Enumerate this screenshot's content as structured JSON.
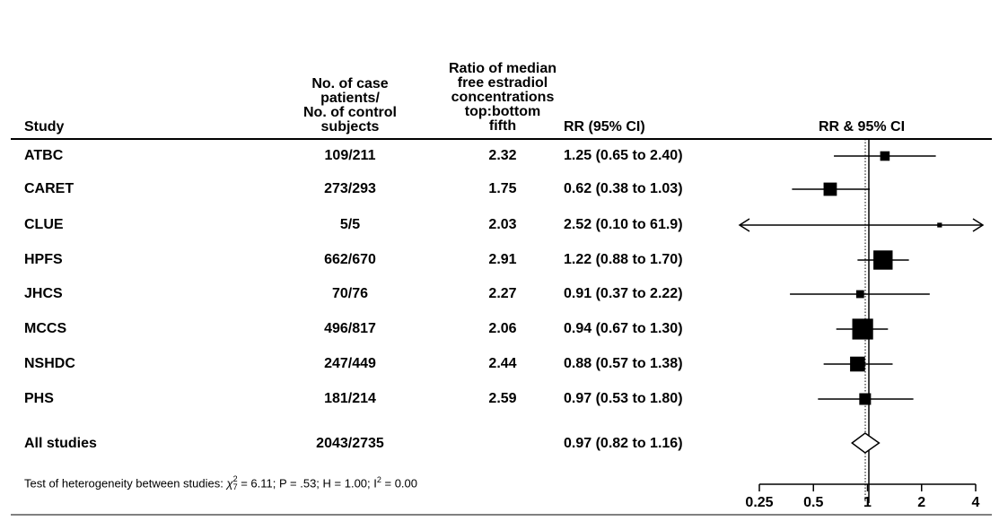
{
  "headers": {
    "study": "Study",
    "cases": "No. of case\npatients/\nNo. of control\nsubjects",
    "ratio": "Ratio of median\nfree estradiol\nconcentrations\ntop:bottom\nfifth",
    "rr": "RR (95% CI)",
    "plot": "RR & 95% CI"
  },
  "chart_data": {
    "type": "forest",
    "x_scale": "log",
    "xlim": [
      0.25,
      4
    ],
    "x_ticks": [
      "0.25",
      "0.5",
      "1",
      "2",
      "4"
    ],
    "reference_line": 1,
    "studies": [
      {
        "name": "ATBC",
        "cases": "109/211",
        "ratio": "2.32",
        "rr_text": "1.25 (0.65 to 2.40)",
        "rr": 1.25,
        "lo": 0.65,
        "hi": 2.4,
        "weight": 0.55
      },
      {
        "name": "CARET",
        "cases": "273/293",
        "ratio": "1.75",
        "rr_text": "0.62 (0.38 to 1.03)",
        "rr": 0.62,
        "lo": 0.38,
        "hi": 1.03,
        "weight": 0.9
      },
      {
        "name": "CLUE",
        "cases": "5/5",
        "ratio": "2.03",
        "rr_text": "2.52 (0.10 to 61.9)",
        "rr": 2.52,
        "lo": 0.1,
        "hi": 61.9,
        "weight": 0.1
      },
      {
        "name": "HPFS",
        "cases": "662/670",
        "ratio": "2.91",
        "rr_text": "1.22 (0.88 to 1.70)",
        "rr": 1.22,
        "lo": 0.88,
        "hi": 1.7,
        "weight": 1.45
      },
      {
        "name": "JHCS",
        "cases": "70/76",
        "ratio": "2.27",
        "rr_text": "0.91 (0.37 to 2.22)",
        "rr": 0.91,
        "lo": 0.37,
        "hi": 2.22,
        "weight": 0.4
      },
      {
        "name": "MCCS",
        "cases": "496/817",
        "ratio": "2.06",
        "rr_text": "0.94 (0.67 to 1.30)",
        "rr": 0.94,
        "lo": 0.67,
        "hi": 1.3,
        "weight": 1.6
      },
      {
        "name": "NSHDC",
        "cases": "247/449",
        "ratio": "2.44",
        "rr_text": "0.88 (0.57 to 1.38)",
        "rr": 0.88,
        "lo": 0.57,
        "hi": 1.38,
        "weight": 1.05
      },
      {
        "name": "PHS",
        "cases": "181/214",
        "ratio": "2.59",
        "rr_text": "0.97 (0.53 to 1.80)",
        "rr": 0.97,
        "lo": 0.53,
        "hi": 1.8,
        "weight": 0.75
      }
    ],
    "overall": {
      "name": "All studies",
      "cases": "2043/2735",
      "rr_text": "0.97 (0.82 to 1.16)",
      "rr": 0.97,
      "lo": 0.82,
      "hi": 1.16
    }
  },
  "heterogeneity": {
    "prefix": "Test of heterogeneity between studies: ",
    "chi": "χ",
    "chi_sup": "2",
    "chi_sub": "7",
    "rest_a": " = 6.11; P = .53; H = 1.00; I",
    "i_sup": "2",
    "rest_b": " = 0.00"
  }
}
